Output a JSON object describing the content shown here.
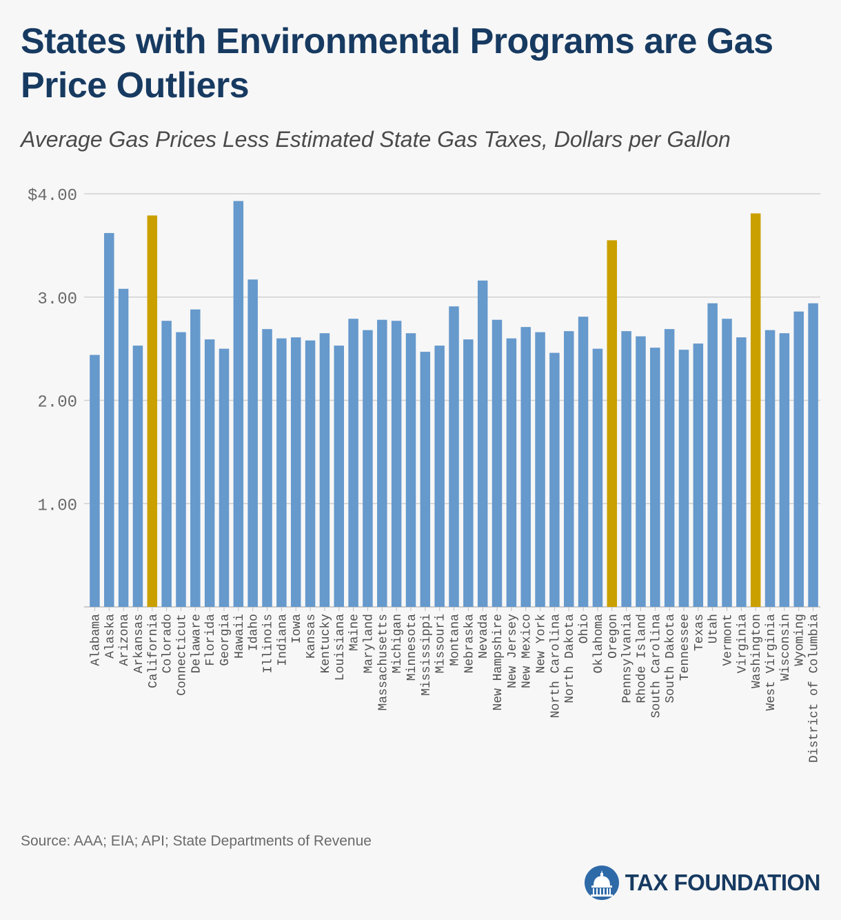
{
  "header": {
    "title": "States with Environmental Programs are Gas Price Outliers",
    "subtitle": "Average Gas Prices Less Estimated State Gas Taxes, Dollars per Gallon"
  },
  "footer": {
    "source": "Source: AAA; EIA; API; State Departments of Revenue",
    "logo_text": "TAX FOUNDATION"
  },
  "colors": {
    "default_bar": "#6699cc",
    "highlight_bar": "#c9a000",
    "title": "#173a61",
    "grid": "#d0d0d0"
  },
  "chart_data": {
    "type": "bar",
    "title": "States with Environmental Programs are Gas Price Outliers",
    "subtitle": "Average Gas Prices Less Estimated State Gas Taxes, Dollars per Gallon",
    "xlabel": "",
    "ylabel": "",
    "ylim": [
      0,
      4
    ],
    "yticks": [
      {
        "value": 1,
        "label": "1.00"
      },
      {
        "value": 2,
        "label": "2.00"
      },
      {
        "value": 3,
        "label": "3.00"
      },
      {
        "value": 4,
        "label": "$4.00"
      }
    ],
    "grid": true,
    "highlighted": [
      "California",
      "Oregon",
      "Washington"
    ],
    "categories": [
      "Alabama",
      "Alaska",
      "Arizona",
      "Arkansas",
      "California",
      "Colorado",
      "Connecticut",
      "Delaware",
      "Florida",
      "Georgia",
      "Hawaii",
      "Idaho",
      "Illinois",
      "Indiana",
      "Iowa",
      "Kansas",
      "Kentucky",
      "Louisiana",
      "Maine",
      "Maryland",
      "Massachusetts",
      "Michigan",
      "Minnesota",
      "Mississippi",
      "Missouri",
      "Montana",
      "Nebraska",
      "Nevada",
      "New Hampshire",
      "New Jersey",
      "New Mexico",
      "New York",
      "North Carolina",
      "North Dakota",
      "Ohio",
      "Oklahoma",
      "Oregon",
      "Pennsylvania",
      "Rhode Island",
      "South Carolina",
      "South Dakota",
      "Tennessee",
      "Texas",
      "Utah",
      "Vermont",
      "Virginia",
      "Washington",
      "West Virginia",
      "Wisconsin",
      "Wyoming",
      "District of Columbia"
    ],
    "values": [
      2.44,
      3.62,
      3.08,
      2.53,
      3.79,
      2.77,
      2.66,
      2.88,
      2.59,
      2.5,
      3.93,
      3.17,
      2.69,
      2.6,
      2.61,
      2.58,
      2.65,
      2.53,
      2.79,
      2.68,
      2.78,
      2.77,
      2.65,
      2.47,
      2.53,
      2.91,
      2.59,
      3.16,
      2.78,
      2.6,
      2.71,
      2.66,
      2.46,
      2.67,
      2.81,
      2.5,
      3.55,
      2.67,
      2.62,
      2.51,
      2.69,
      2.49,
      2.55,
      2.94,
      2.79,
      2.61,
      3.81,
      2.68,
      2.65,
      2.86,
      2.94
    ]
  }
}
